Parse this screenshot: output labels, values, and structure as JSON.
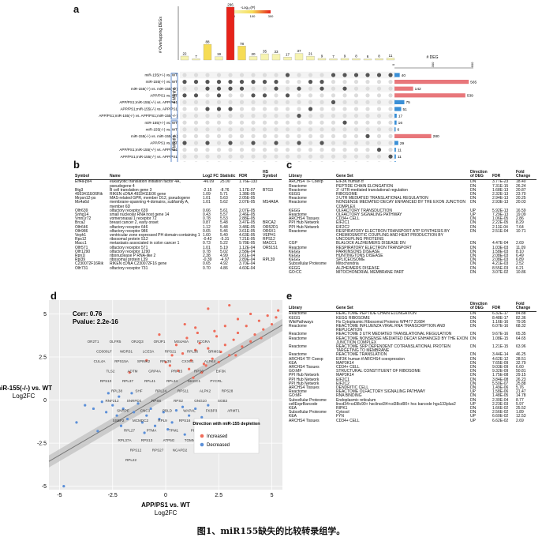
{
  "caption": "图1、miR155缺失的比较转录组学。",
  "panels": {
    "a": "a",
    "b": "b",
    "c": "c",
    "d": "d",
    "e": "e"
  },
  "panel_a": {
    "y_title": "# Overlapping DEGs",
    "legend_title": "-Log₁₀(P)",
    "legend_ticks": [
      "0",
      "100",
      "300"
    ],
    "bar_counts": [
      "22",
      "7",
      "88",
      "19",
      "296",
      "78",
      "20",
      "35",
      "33",
      "17",
      "37",
      "21",
      "9",
      "7",
      "9",
      "8",
      "6",
      "8",
      "11"
    ],
    "bar_colors": [
      "#f6f3b0",
      "#f6f3b0",
      "#f6dc55",
      "#f6f3b0",
      "#e6231a",
      "#f6dc55",
      "#f6f3b0",
      "#f6f3b0",
      "#f6f3b0",
      "#f6f3b0",
      "#f6f3b0",
      "#f6f3b0",
      "#f6f3b0",
      "#f6f3b0",
      "#f6f3b0",
      "#f6f3b0",
      "#f6f3b0",
      "#f6f3b0",
      "#f6f3b0"
    ],
    "row_labels": [
      "miR-155(+/-) vs. WT",
      "miR-155(-/-) vs. WT",
      "miR-155(-/-) vs. miR-155(+/-)",
      "APP/PS1 vs. WT",
      "APP/PS1;miR-155(+/-) vs. APP/PS1",
      "APP/PS1;miR-155(-/-) vs. APP/PS1",
      "APP/PS1;miR-155(-/-) vs. APP/PS1;miR-155(+/-)",
      "miR-155(+/-) vs. WT",
      "miR-155(-/-) vs. WT",
      "miR-155(-/-) vs. miR-155(+/-)",
      "APP/PS1 vs. WT",
      "APP/PS1;miR-155(+/-) vs. APP/PS1",
      "APP/PS1;miR-155(-/-) vs. APP/PS1",
      "APP/PS1;miR-155(-/-) vs. APP/PS1;miR-155(+/-)"
    ],
    "group_labels": [
      "4 Months",
      "8 Months"
    ],
    "deg_title": "# DEG",
    "deg_axis": [
      "0",
      "300",
      "600"
    ],
    "deg_values": [
      40,
      565,
      142,
      539,
      75,
      51,
      17,
      16,
      6,
      280,
      29,
      11,
      11,
      11
    ],
    "deg_labels": [
      "40",
      "565",
      "142",
      "539",
      "75",
      "51",
      "17",
      "16",
      "6",
      "280",
      "29",
      "11",
      "11",
      "11"
    ],
    "deg_colors": [
      "#3a8fd6",
      "#e8767a",
      "#e8767a",
      "#e8767a",
      "#3a8fd6",
      "#3a8fd6",
      "#3a8fd6",
      "#3a8fd6",
      "#3a8fd6",
      "#e8767a",
      "#3a8fd6",
      "#3a8fd6",
      "#3a8fd6",
      "#3a8fd6"
    ],
    "matrix": [
      "0000000001000111111",
      "1111111110011000000",
      "0011110010101010000",
      "1101001101000000000",
      "0000000000000100000",
      "0011100000010000000",
      "0000000000100000000",
      "0000000000000010000",
      "0000000000000000000",
      "0000000000000000100",
      "1010101010101000000",
      "0000000000000000010",
      "0000000000000000001",
      "0000000000000000000"
    ]
  },
  "panel_b": {
    "headers": [
      "Symbol",
      "Name",
      "Log2 FC",
      "Statistic",
      "FDR",
      "HS Symbol"
    ],
    "rows": [
      [
        "Eif4a-ps4",
        "eukaryotic translation initiation factor 4A, pseudogene 4",
        "-46.09",
        "25.00",
        "1.76E-133",
        ""
      ],
      [
        "Btg3",
        "B cell translation gene 3",
        "-2.15",
        "-8.76",
        "1.17E-07",
        "BTG3"
      ],
      [
        "4933411E06Rik",
        "RIKEN cDNA 4933411E06 gene",
        "1.09",
        "5.71",
        "1.38E-05",
        ""
      ],
      [
        "Mrpsn12-ps",
        "MAS-related GPR, member D12, pseudogene",
        "1.01",
        "5.63",
        "2.05E-05",
        ""
      ],
      [
        "Ms4a6d",
        "membrane-spanning 4-domains, subfamily A, member 6D",
        "1.01",
        "5.62",
        "2.07E-05",
        "MS4A6A"
      ],
      [
        "Olfr639",
        "olfactory receptor 639",
        "0.66",
        "5.61",
        "2.07E-05",
        ""
      ],
      [
        "Snhg14",
        "small nucleolar RNA host gene 14",
        "0.43",
        "5.57",
        "2.46E-05",
        ""
      ],
      [
        "Vmn1r72",
        "vomeronasal 1 receptor 72",
        "0.78",
        "5.53",
        "2.88E-05",
        ""
      ],
      [
        "Brca2",
        "breast cancer 2, early onset",
        "0.87",
        "5.48",
        "3.47E-05",
        "BRCA2"
      ],
      [
        "Olfr646",
        "olfactory receptor 646",
        "1.12",
        "5.48",
        "3.48E-05",
        "OR52D1"
      ],
      [
        "Olfr986",
        "olfactory receptor 986",
        "0.65",
        "5.46",
        "3.61E-05",
        "OR6X1"
      ],
      [
        "Veph1",
        "ventricular zone expressed PH domain-containing 1",
        "1.60",
        "5.40",
        "4.63E-05",
        "VEPH1"
      ],
      [
        "Rps12",
        "ribosomal protein S12",
        "-0.42",
        "-5.31",
        "7.21E-05",
        "RPS12"
      ],
      [
        "Macc1",
        "metastasis associated in colon cancer 1",
        "0.73",
        "5.22",
        "9.78E-05",
        "MACC1"
      ],
      [
        "Olfr571",
        "olfactory receptor 571",
        "1.01",
        "5.19",
        "1.12E-04",
        "OR51S1"
      ],
      [
        "Olfr1290",
        "olfactory receptor 1290",
        "0.78",
        "5.02",
        "2.58E-04",
        ""
      ],
      [
        "Rpn1l",
        "ribonuclease P RNA-like 2",
        "2.38",
        "4.99",
        "2.61E-04",
        ""
      ],
      [
        "Rpl39",
        "ribosomal protein L39",
        "-0.39",
        "-4.97",
        "2.89E-04",
        "RPL39"
      ],
      [
        "C230072F16Rik",
        "RIKEN cDNA C230072F16 gene",
        "0.65",
        "4.92",
        "3.70E-04",
        ""
      ],
      [
        "Olfr731",
        "olfactory receptor 731",
        "0.70",
        "4.86",
        "4.60E-04",
        ""
      ]
    ]
  },
  "panel_c": {
    "headers": [
      "Library",
      "Gene Set",
      "Direction of DEG",
      "FDR",
      "Fold Change"
    ],
    "rows": [
      [
        "ARCHS4 TF Coexp",
        "EIF3K human tf",
        "DN",
        "3.77E-23",
        "18.40"
      ],
      [
        "Reactome",
        "PEPTIDE CHAIN ELONGATION",
        "DN",
        "7.31E-15",
        "26.24"
      ],
      [
        "Reactome",
        "3' -UTR-mediated translational regulation",
        "DN",
        "1.68E-13",
        "20.87"
      ],
      [
        "KEGG",
        "RIBOSOME",
        "DN",
        "2.32E-13",
        "23.70"
      ],
      [
        "Reactome",
        "3 UTR MEDIATED TRANSLATIONAL REGULATION",
        "DN",
        "2.94E-13",
        "20.25"
      ],
      [
        "Reactome",
        "NONSENSE MEDIATED DECAY ENHANCED BY THE EXON JUNCTION COMPLEX",
        "DN",
        "2.93E-13",
        "20.03"
      ],
      [
        "KEGG",
        "OLFACTORY TRANSDUCTION",
        "UP",
        "5.92E-13",
        "16.59"
      ],
      [
        "Reactome",
        "OLFACTORY SIGNALING PATHWAY",
        "UP",
        "7.29E-13",
        "19.09"
      ],
      [
        "ARCHS4 Tissues",
        "CD34+ CELL",
        "DN",
        "1.06E-05",
        "2.86"
      ],
      [
        "PPI Hub Network",
        "EIF2C1",
        "DN",
        "2.22E-05",
        "8.29"
      ],
      [
        "PPI Hub Network",
        "EIF2C2",
        "DN",
        "2.11E-04",
        "7.64"
      ],
      [
        "Reactome",
        "RESPIRATORY ELECTRON TRANSPORT ATP SYNTHESIS BY CHEMIOSMOTIC COUPLING AND HEAT PRODUCTION BY UNCOUPLING PROTEINS",
        "DN",
        "2.51E-04",
        "10.71"
      ],
      [
        "CGP",
        "BLALOCK ALZHEIMERS DISEASE DN",
        "DN",
        "4.47E-04",
        "2.69"
      ],
      [
        "Reactome",
        "RESPIRATORY ELECTRON TRANSPORT",
        "DN",
        "1.03E-03",
        "11.09"
      ],
      [
        "KEGG",
        "PARKINSONS DISEASE",
        "DN",
        "1.58E-03",
        "8.10"
      ],
      [
        "KEGG",
        "HUNTINGTONS DISEASE",
        "DN",
        "2.08E-03",
        "6.49"
      ],
      [
        "KEGG",
        "SPLICEOSOME",
        "DN",
        "2.08E-03",
        "6.89"
      ],
      [
        "Subcellular Proteome",
        "Mitochondria",
        "DN",
        "4.21E-03",
        "2.52"
      ],
      [
        "KEGG",
        "ALZHEIMERS DISEASE",
        "DN",
        "8.55E-03",
        "6.21"
      ],
      [
        "GO:CC",
        "MITOCHONDRIAL MEMBRANE PART",
        "DN",
        "3.07E-02",
        "10.86"
      ]
    ]
  },
  "panel_d": {
    "corr": "Corr: 0.76",
    "pval": "Pvalue: 2.2e-16",
    "ylabel": "miR-155(-/-) vs. WT",
    "ylabel2": "Log2FC",
    "xlabel": "APP/PS1 vs. WT",
    "xlabel2": "Log2FC",
    "x_ticks": [
      "-5",
      "-2.5",
      "0",
      "2.5",
      "5"
    ],
    "y_ticks": [
      "5",
      "2.5",
      "0",
      "-2.5",
      "-5"
    ],
    "legend_title": "Direction with miR-155 depletion",
    "legend_items": [
      "Increased",
      "Decreased"
    ],
    "legend_colors": [
      "#ef6c5a",
      "#5b8fd8"
    ],
    "gene_labels": [
      "OR2T1",
      "OLFR5",
      "ORJQ3",
      "ORJP1",
      "MS4A6A",
      "FCGRA",
      "CD300LF",
      "WDR31",
      "LCE3A",
      "RPS21",
      "RPL36",
      "BRMS1",
      "CUL4A",
      "RPS15A",
      "SPINK2",
      "RPL35",
      "CXXC1",
      "ALPK4",
      "TLS2",
      "ADTM",
      "GRP4A",
      "PRF15",
      "RPS6",
      "EIF3K",
      "RPS10",
      "RPL37",
      "RPL41",
      "RPL34",
      "MACC1",
      "PYCRL",
      "RPL38",
      "SHF",
      "RPL24",
      "RPS11",
      "ALPK2",
      "RPS28",
      "RNF212",
      "SNRPD2",
      "RPS8",
      "RPS2",
      "GNG10",
      "SGB3",
      "SNRPE",
      "CNC3",
      "PBLD",
      "WAPAL",
      "FKBP3",
      "ARMT1",
      "SSBP2",
      "MCMDC2",
      "RPL9",
      "RPS16",
      "RPS29",
      "NDUFA1",
      "RPL27",
      "PTMA",
      "TPM1",
      "PERP",
      "COX7C",
      "RPL39",
      "RPL37A",
      "RPS13",
      "ATP5G",
      "TOMM7",
      "C22orf39",
      "EIF3A",
      "RPS12",
      "RPS27",
      "NCAPD2",
      "SHFM1",
      "TULP1",
      "CKAP2",
      "RPL22"
    ],
    "chart_data": {
      "type": "scatter",
      "xlabel": "APP/PS1 vs. WT Log2FC",
      "ylabel": "miR-155(-/-) vs. WT Log2FC",
      "xlim": [
        -5.5,
        5.5
      ],
      "ylim": [
        -5.2,
        5.8
      ],
      "series": [
        {
          "name": "Increased",
          "points": [
            [
              0.5,
              3.2
            ],
            [
              0.8,
              2.7
            ],
            [
              1.0,
              3.6
            ],
            [
              1.2,
              2.3
            ],
            [
              1.4,
              2.9
            ],
            [
              1.6,
              3.3
            ],
            [
              1.8,
              2.1
            ],
            [
              2.0,
              3.0
            ],
            [
              2.2,
              2.4
            ],
            [
              2.4,
              3.7
            ],
            [
              2.6,
              2.8
            ],
            [
              2.8,
              3.2
            ],
            [
              3.0,
              2.6
            ],
            [
              3.2,
              3.5
            ],
            [
              3.4,
              3.9
            ],
            [
              3.6,
              3.1
            ],
            [
              3.8,
              4.3
            ],
            [
              4.0,
              3.4
            ],
            [
              4.2,
              3.8
            ],
            [
              4.4,
              4.6
            ],
            [
              4.6,
              4.1
            ],
            [
              4.8,
              4.9
            ],
            [
              5.0,
              4.4
            ],
            [
              5.2,
              4.8
            ],
            [
              2.0,
              5.3
            ],
            [
              1.4,
              4.2
            ],
            [
              3.4,
              4.7
            ],
            [
              2.8,
              4.3
            ],
            [
              4.0,
              5.0
            ],
            [
              0.2,
              2.0
            ],
            [
              1.1,
              1.8
            ],
            [
              1.9,
              2.0
            ],
            [
              2.5,
              2.2
            ],
            [
              3.3,
              2.6
            ],
            [
              1.5,
              3.9
            ],
            [
              2.3,
              4.0
            ],
            [
              0.3,
              2.6
            ],
            [
              0.9,
              4.4
            ],
            [
              4.5,
              3.6
            ],
            [
              3.0,
              5.5
            ],
            [
              -1.7,
              1.6
            ],
            [
              -0.9,
              2.3
            ],
            [
              -0.3,
              3.8
            ],
            [
              5.3,
              5.2
            ],
            [
              0.0,
              2.2
            ],
            [
              0.6,
              1.7
            ],
            [
              1.3,
              1.3
            ],
            [
              1.7,
              1.6
            ]
          ]
        },
        {
          "name": "Decreased",
          "points": [
            [
              -3.8,
              -0.3
            ],
            [
              -3.4,
              -0.5
            ],
            [
              -3.0,
              -0.1
            ],
            [
              -2.8,
              -0.7
            ],
            [
              -2.5,
              -0.3
            ],
            [
              -2.3,
              -0.9
            ],
            [
              -2.0,
              -0.5
            ],
            [
              -1.8,
              -1.1
            ],
            [
              -1.5,
              -0.7
            ],
            [
              -1.3,
              -0.2
            ],
            [
              -1.1,
              -1.3
            ],
            [
              -0.9,
              -0.9
            ],
            [
              -0.7,
              -0.5
            ],
            [
              -0.5,
              -1.5
            ],
            [
              -0.3,
              -1.1
            ],
            [
              -0.1,
              -0.7
            ],
            [
              0.1,
              -1.7
            ],
            [
              0.3,
              -1.3
            ],
            [
              0.5,
              -0.6
            ],
            [
              0.8,
              -0.4
            ],
            [
              1.1,
              -0.9
            ],
            [
              1.4,
              -0.5
            ],
            [
              1.7,
              -1.0
            ],
            [
              2.0,
              -0.3
            ],
            [
              -2.7,
              0.4
            ],
            [
              -2.2,
              0.2
            ],
            [
              -1.6,
              0.4
            ],
            [
              -4.8,
              -5.0
            ],
            [
              -4.2,
              -1.3
            ],
            [
              3.4,
              -1.6
            ],
            [
              2.6,
              -1.7
            ],
            [
              -1.0,
              -1.9
            ],
            [
              0.9,
              -2.0
            ],
            [
              -3.2,
              -1.8
            ],
            [
              -2.1,
              -1.5
            ],
            [
              1.6,
              -1.7
            ]
          ]
        }
      ]
    }
  },
  "panel_e": {
    "headers": [
      "Library",
      "Gene Set",
      "Direction of DEG",
      "FDR",
      "Fold Change"
    ],
    "rows": [
      [
        "Reactome",
        "REACTOME PEPTIDE CHAIN ELONGATION",
        "DN",
        "6.32E-17",
        "84.88"
      ],
      [
        "KEGG",
        "KEGG RIBOSOME",
        "DN",
        "8.48E-17",
        "82.36"
      ],
      [
        "WikiPathways",
        "Hs Cytoplasmic Ribosomal Proteins WP477 21684",
        "DN",
        "1.16E-16",
        "79.95"
      ],
      [
        "Reactome",
        "REACTOME INFLUENZA VIRAL RNA TRANSCRIPTION AND REPLICATION",
        "DN",
        "6.07E-16",
        "68.32"
      ],
      [
        "Reactome",
        "REACTOME 3 UTR MEDIATED TRANSLATIONAL REGULATION",
        "DN",
        "9.67E-16",
        "65.35"
      ],
      [
        "Reactome",
        "REACTOME NONSENSE MEDIATED DECAY ENHANCED BY THE EXON JUNCTION COMPLEX",
        "DN",
        "1.08E-15",
        "64.65"
      ],
      [
        "Reactome",
        "REACTOME SRP DEPENDENT COTRANSLATIONAL PROTEIN TARGETING TO MEMBRANE",
        "DN",
        "1.21E-15",
        "63.96"
      ],
      [
        "Reactome",
        "REACTOME TRANSLATION",
        "DN",
        "3.44E-14",
        "46.25"
      ],
      [
        "ARCHS4 TF Coexp",
        "EIF3K human tf ARCHS4 coexpression",
        "DN",
        "4.62E-12",
        "28.51"
      ],
      [
        "KEA",
        "MAP3K14",
        "DN",
        "7.65E-09",
        "32.79"
      ],
      [
        "ARCHS4 Tissues",
        "CD34+ CELL",
        "DN",
        "9.03E-09",
        "6.60"
      ],
      [
        "GO:MF",
        "STRUCTURAL CONSTITUENT OF RIBOSOME",
        "DN",
        "9.32E-09",
        "50.81"
      ],
      [
        "PPI Hub Network",
        "MAP3K14",
        "DN",
        "1.75E-08",
        "29.15"
      ],
      [
        "PPI Hub Network",
        "EIF2C1",
        "DN",
        "3.84E-08",
        "26.23"
      ],
      [
        "PPI Hub Network",
        "EIF2C2",
        "DN",
        "5.50E-07",
        "25.88"
      ],
      [
        "ARCHS4 Tissues",
        "DENDRITIC CELL",
        "DN",
        "1.49E-06",
        "5.76"
      ],
      [
        "Reactome",
        "REACTOME OLFACTORY SIGNALING PATHWAY",
        "UP",
        "1.58E-06",
        "21.47"
      ],
      [
        "GO:MF",
        "RNA BINDING",
        "DN",
        "1.48E-05",
        "14.78"
      ],
      [
        "Subcellular Proteome",
        "Endoplasmic reticulum",
        "DN",
        "2.30E-04",
        "8.77"
      ],
      [
        "cellExprBarcode",
        "lincd34+cd38c90+ hsclincd34+cd38cd90+ hsc barcode hgu133plus2",
        "UP",
        "2.23E-03",
        "5.97"
      ],
      [
        "KEA",
        "RIPK1",
        "DN",
        "1.66E-02",
        "25.52"
      ],
      [
        "Subcellular Proteome",
        "Cytosol",
        "DN",
        "2.56E-02",
        "1.89"
      ],
      [
        "KEA",
        "FYN",
        "UP",
        "6.60E-02",
        "12.53"
      ],
      [
        "ARCHS4 Tissues",
        "CD34+ CELL",
        "UP",
        "6.62E-02",
        "2.69"
      ]
    ]
  }
}
